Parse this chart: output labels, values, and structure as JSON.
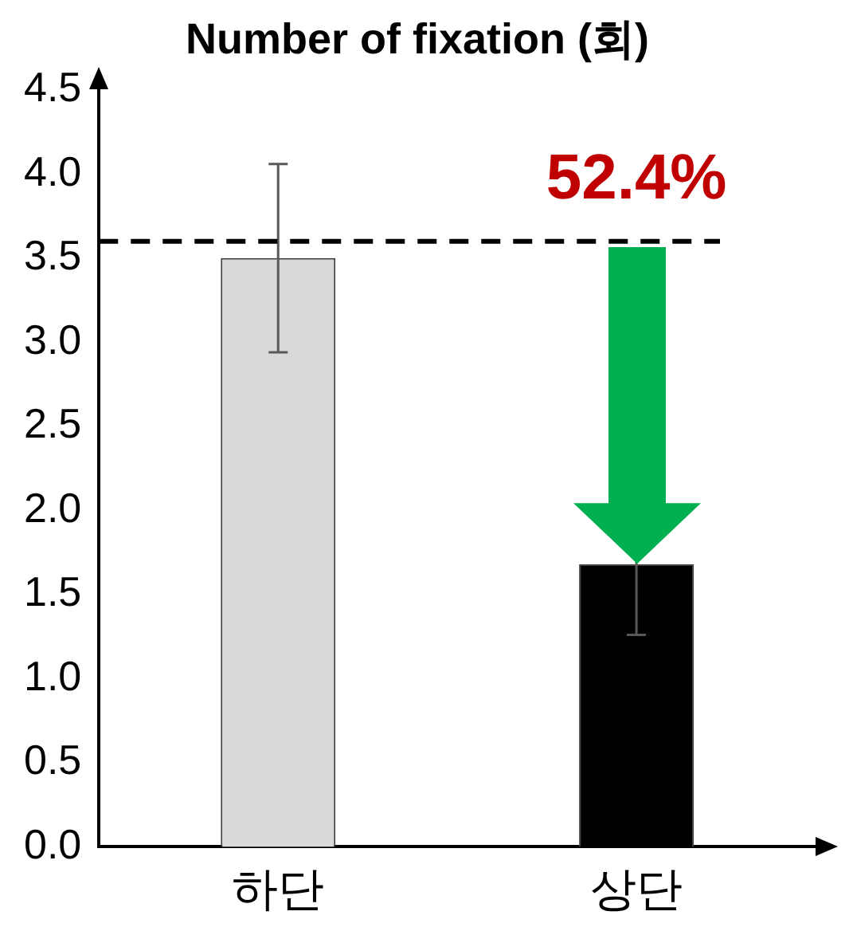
{
  "chart_data": {
    "type": "bar",
    "title": "Number of fixation (회)",
    "categories": [
      "하단",
      "상단"
    ],
    "values": [
      3.5,
      1.68
    ],
    "colors": [
      "#d9d9d9",
      "#000000"
    ],
    "errors": [
      0.56,
      0.42
    ],
    "ylim": [
      0,
      4.5
    ],
    "yticks": [
      {
        "value": 0,
        "label": "0.0"
      },
      {
        "value": 0.5,
        "label": "0.5"
      },
      {
        "value": 1,
        "label": "1.0"
      },
      {
        "value": 1.5,
        "label": "1.5"
      },
      {
        "value": 2,
        "label": "2.0"
      },
      {
        "value": 2.5,
        "label": "2.5"
      },
      {
        "value": 3,
        "label": "3.0"
      },
      {
        "value": 3.5,
        "label": "3.5"
      },
      {
        "value": 4,
        "label": "4.0"
      },
      {
        "value": 4.5,
        "label": "4.5"
      }
    ],
    "grid": false,
    "legend": false,
    "ref_lines": [
      {
        "axis": "y",
        "value": 3.6,
        "color": "#000000",
        "line_style": "dashed"
      }
    ],
    "annotations": [
      "52.4%"
    ]
  }
}
